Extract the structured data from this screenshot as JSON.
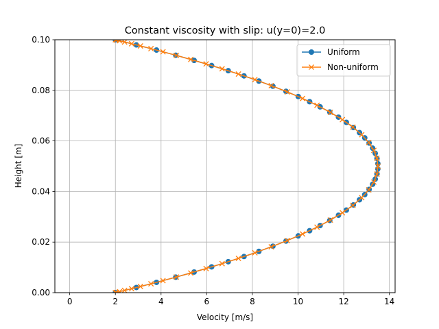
{
  "chart_data": {
    "type": "line",
    "title": "Constant viscosity with slip: u(y=0)=2.0",
    "xlabel": "Velocity [m/s]",
    "ylabel": "Height [m]",
    "xlim": [
      -0.65,
      14.25
    ],
    "ylim": [
      0.0,
      0.1
    ],
    "xticks": [
      0,
      2,
      4,
      6,
      8,
      10,
      12,
      14
    ],
    "yticks": [
      0.0,
      0.02,
      0.04,
      0.06,
      0.08,
      0.1
    ],
    "xtick_labels": [
      "0",
      "2",
      "4",
      "6",
      "8",
      "10",
      "12",
      "14"
    ],
    "ytick_labels": [
      "0.00",
      "0.02",
      "0.04",
      "0.06",
      "0.08",
      "0.10"
    ],
    "grid": true,
    "legend_position": "top-right",
    "series": [
      {
        "name": "Uniform",
        "color": "#1f77b4",
        "marker": "circle",
        "profile": {
          "kind": "parabola",
          "u0": 2.0,
          "height": 0.1,
          "umax": 13.5,
          "n": 50
        }
      },
      {
        "name": "Non-uniform",
        "color": "#ff7f0e",
        "marker": "x",
        "profile": {
          "kind": "parabola-clustered",
          "u0": 2.0,
          "height": 0.1,
          "umax": 13.5,
          "n": 51
        }
      }
    ]
  }
}
